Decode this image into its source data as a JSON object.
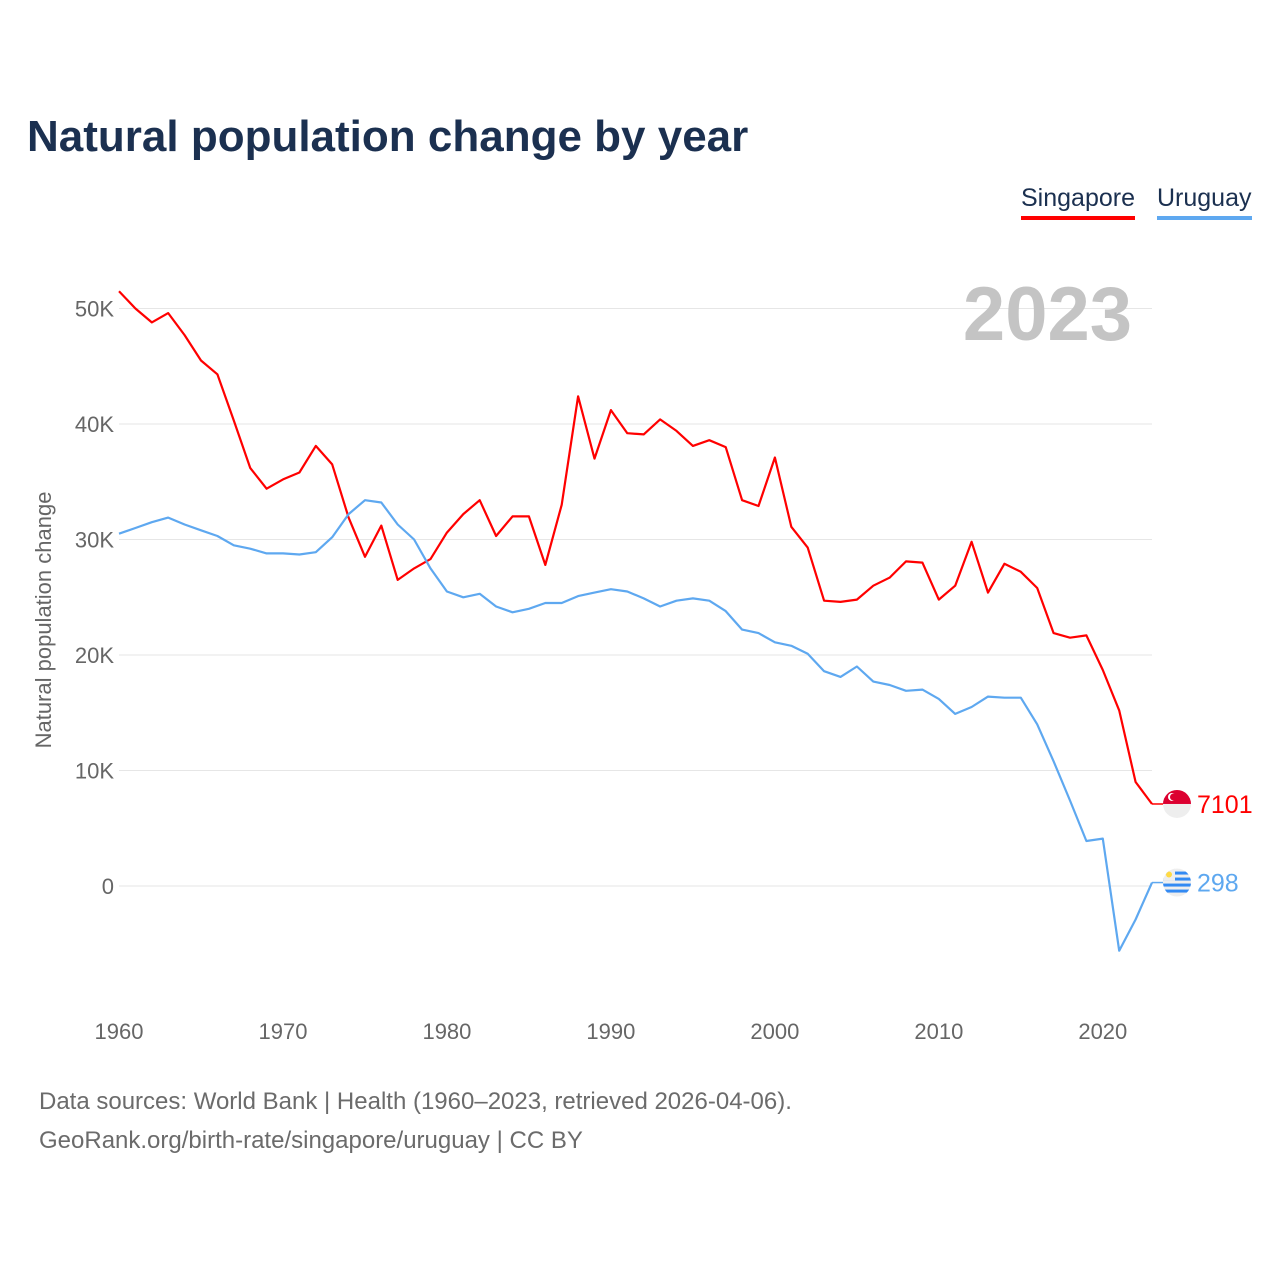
{
  "title": "Natural population change by year",
  "legend": [
    {
      "name": "Singapore",
      "color": "#ff0000"
    },
    {
      "name": "Uruguay",
      "color": "#5ea8f0"
    }
  ],
  "year_label": "2023",
  "footer": {
    "source": "Data sources: World Bank | Health (1960–2023, retrieved 2026-04-06).",
    "url": "GeoRank.org/birth-rate/singapore/uruguay | CC BY"
  },
  "chart_data": {
    "type": "line",
    "title": "Natural population change by year",
    "xlabel": "",
    "ylabel": "Natural population change",
    "xlim": [
      1960,
      2023
    ],
    "ylim": [
      -10000,
      55000
    ],
    "grid": true,
    "legend_position": "top-right",
    "x_ticks": [
      1960,
      1970,
      1980,
      1990,
      2000,
      2010,
      2020
    ],
    "x_tick_labels": [
      "1960",
      "1970",
      "1980",
      "1990",
      "2000",
      "2010",
      "2020"
    ],
    "y_ticks": [
      0,
      10000,
      20000,
      30000,
      40000,
      50000
    ],
    "y_tick_labels": [
      "0",
      "10K",
      "20K",
      "30K",
      "40K",
      "50K"
    ],
    "x": [
      1960,
      1961,
      1962,
      1963,
      1964,
      1965,
      1966,
      1967,
      1968,
      1969,
      1970,
      1971,
      1972,
      1973,
      1974,
      1975,
      1976,
      1977,
      1978,
      1979,
      1980,
      1981,
      1982,
      1983,
      1984,
      1985,
      1986,
      1987,
      1988,
      1989,
      1990,
      1991,
      1992,
      1993,
      1994,
      1995,
      1996,
      1997,
      1998,
      1999,
      2000,
      2001,
      2002,
      2003,
      2004,
      2005,
      2006,
      2007,
      2008,
      2009,
      2010,
      2011,
      2012,
      2013,
      2014,
      2015,
      2016,
      2017,
      2018,
      2019,
      2020,
      2021,
      2022,
      2023
    ],
    "series": [
      {
        "name": "Singapore",
        "color": "#ff0000",
        "end_label": "7101",
        "values": [
          51500,
          50000,
          48800,
          49600,
          47700,
          45500,
          44300,
          40300,
          36200,
          34400,
          35200,
          35800,
          38100,
          36500,
          31900,
          28500,
          31200,
          26500,
          27500,
          28300,
          30600,
          32200,
          33400,
          30300,
          32000,
          32000,
          27800,
          33000,
          42400,
          37000,
          41200,
          39200,
          39100,
          40400,
          39400,
          38100,
          38600,
          38000,
          33400,
          32900,
          37100,
          31100,
          29300,
          24700,
          24600,
          24800,
          26000,
          26700,
          28100,
          28000,
          24800,
          26000,
          29800,
          25400,
          27900,
          27200,
          25800,
          21900,
          21500,
          21700,
          18700,
          15200,
          9000,
          7101
        ]
      },
      {
        "name": "Uruguay",
        "color": "#5ea8f0",
        "end_label": "298",
        "values": [
          30500,
          31000,
          31500,
          31900,
          31300,
          30800,
          30300,
          29500,
          29200,
          28800,
          28800,
          28700,
          28900,
          30200,
          32200,
          33400,
          33200,
          31300,
          30000,
          27500,
          25500,
          25000,
          25300,
          24200,
          23700,
          24000,
          24500,
          24500,
          25100,
          25400,
          25700,
          25500,
          24900,
          24200,
          24700,
          24900,
          24700,
          23800,
          22200,
          21900,
          21100,
          20800,
          20100,
          18600,
          18100,
          19000,
          17700,
          17400,
          16900,
          17000,
          16200,
          14900,
          15500,
          16400,
          16300,
          16300,
          14000,
          10800,
          7400,
          3900,
          4100,
          -5600,
          -2900,
          298
        ]
      }
    ]
  }
}
